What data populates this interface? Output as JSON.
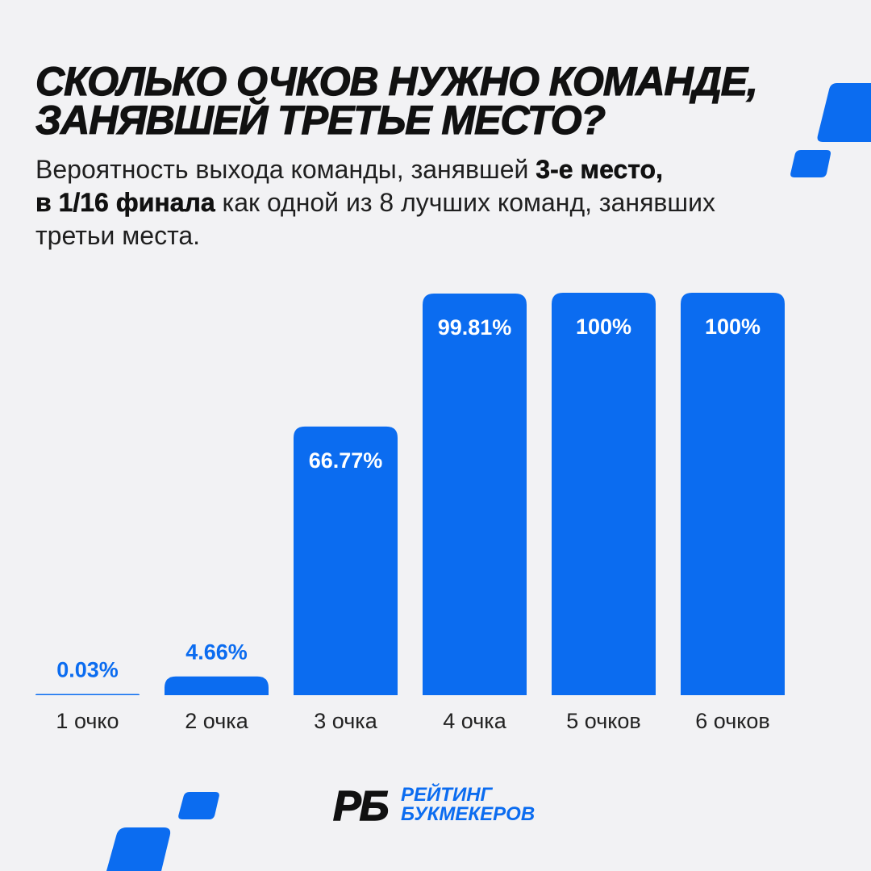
{
  "colors": {
    "background": "#f2f2f4",
    "accent": "#0b6cf0",
    "text": "#111111"
  },
  "header": {
    "title_lines": [
      "СКОЛЬКО ОЧКОВ НУЖНО КОМАНДЕ,",
      "ЗАНЯВШЕЙ ТРЕТЬЕ МЕСТО?"
    ]
  },
  "subtitle": {
    "line1_regular": "Вероятность выхода команды, занявшей ",
    "line1_bold": "3-е место,",
    "line2_bold": "в 1/16 финала",
    "line2_regular": " как одной из 8 лучших команд, занявших",
    "line3_regular": "третьи места."
  },
  "chart_data": {
    "type": "bar",
    "categories": [
      "1 очко",
      "2 очка",
      "3 очка",
      "4 очка",
      "5 очков",
      "6 очков"
    ],
    "values": [
      0.03,
      4.66,
      66.77,
      99.81,
      100,
      100
    ],
    "value_labels": [
      "0.03%",
      "4.66%",
      "66.77%",
      "99.81%",
      "100%",
      "100%"
    ],
    "ylim": [
      0,
      100
    ],
    "grid": false
  },
  "logo": {
    "mark": "РБ",
    "line1": "РЕЙТИНГ",
    "line2": "БУКМЕКЕРОВ"
  }
}
